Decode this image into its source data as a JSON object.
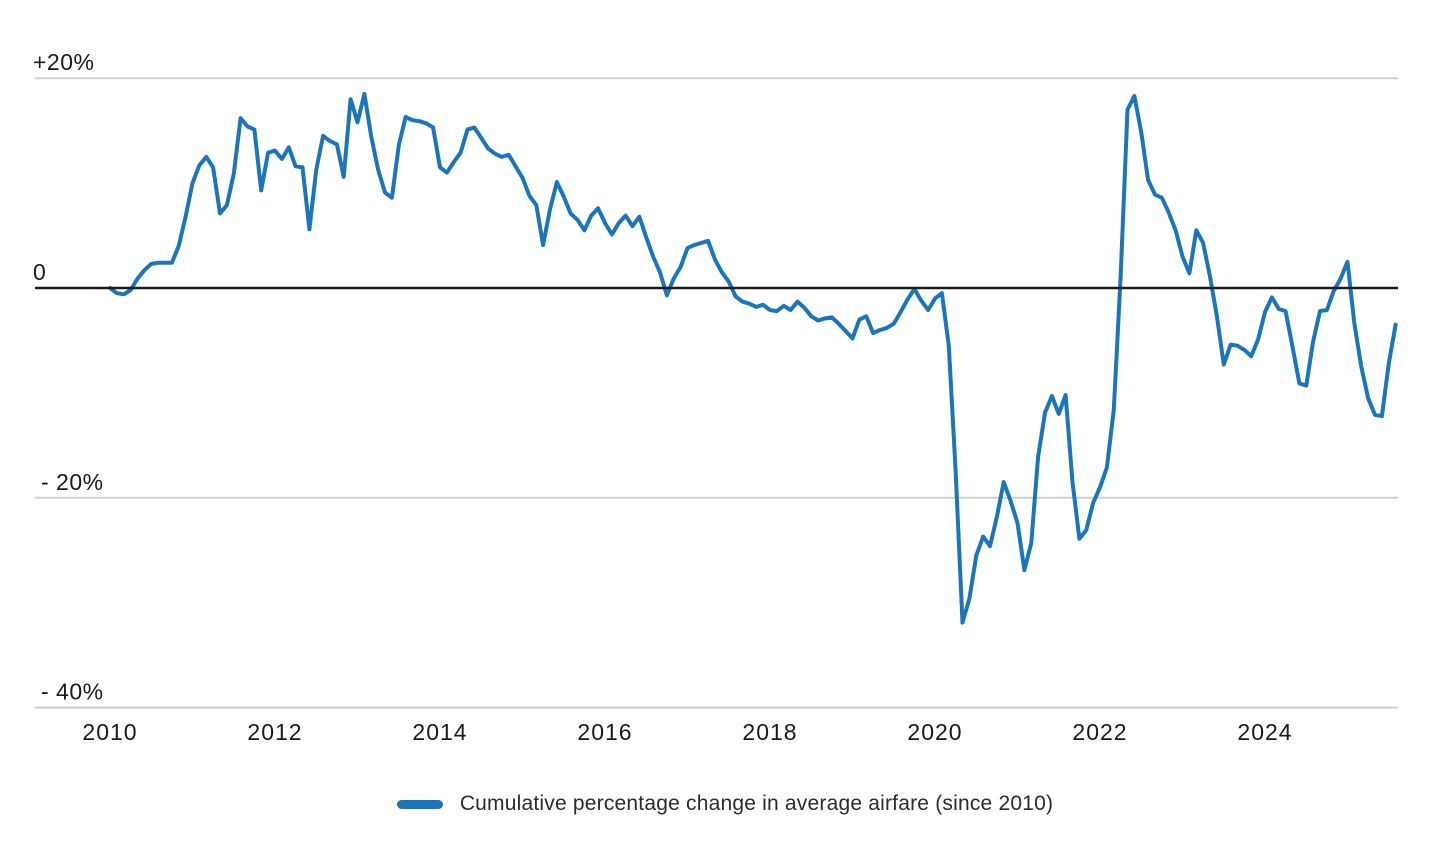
{
  "colors": {
    "line": "#1b75ba",
    "grid": "#cfcfcf",
    "zero_line": "#1a1a1a",
    "axis_text": "#1a1a1a",
    "legend_text": "#2b2b2b",
    "background": "#ffffff"
  },
  "chart_data": {
    "type": "line",
    "title": "",
    "legend": {
      "label": "Cumulative percentage change in average airfare (since 2010)",
      "position": "bottom"
    },
    "grid": "horizontal",
    "x_axis": {
      "ticks": [
        2010,
        2012,
        2014,
        2016,
        2018,
        2020,
        2022,
        2024
      ],
      "range_years": [
        2010.0,
        2025.67
      ]
    },
    "y_axis": {
      "unit": "percent",
      "ylim": [
        -40,
        20
      ],
      "ticks": [
        {
          "label": "+20%",
          "value": 20
        },
        {
          "label": "0",
          "value": 0
        },
        {
          "label": "- 20%",
          "value": -20
        },
        {
          "label": "- 40%",
          "value": -40
        }
      ],
      "zero_line_emphasized": true
    },
    "series": [
      {
        "name": "Cumulative percentage change in average airfare (since 2010)",
        "frequency": "monthly",
        "start_year": 2010,
        "start_month": 1,
        "values": [
          0.0,
          -0.5,
          -0.6,
          -0.2,
          0.9,
          1.7,
          2.3,
          2.4,
          2.4,
          2.4,
          4.0,
          6.8,
          10.0,
          11.7,
          12.5,
          11.5,
          7.1,
          7.9,
          10.9,
          16.2,
          15.4,
          15.1,
          9.3,
          12.9,
          13.1,
          12.3,
          13.4,
          11.6,
          11.5,
          5.6,
          11.3,
          14.5,
          14.0,
          13.7,
          10.6,
          18.0,
          15.8,
          18.5,
          14.4,
          11.3,
          9.1,
          8.6,
          13.6,
          16.3,
          16.0,
          15.9,
          15.7,
          15.3,
          11.5,
          11.0,
          12.0,
          12.9,
          15.1,
          15.3,
          14.3,
          13.3,
          12.8,
          12.5,
          12.7,
          11.6,
          10.5,
          8.8,
          7.9,
          4.1,
          7.5,
          10.1,
          8.7,
          7.1,
          6.5,
          5.5,
          6.9,
          7.6,
          6.2,
          5.1,
          6.2,
          6.9,
          5.9,
          6.8,
          4.8,
          3.0,
          1.5,
          -0.7,
          0.9,
          2.0,
          3.8,
          4.1,
          4.3,
          4.5,
          2.7,
          1.5,
          0.6,
          -0.8,
          -1.3,
          -1.5,
          -1.8,
          -1.6,
          -2.1,
          -2.2,
          -1.7,
          -2.1,
          -1.3,
          -1.9,
          -2.7,
          -3.1,
          -2.9,
          -2.8,
          -3.4,
          -4.1,
          -4.8,
          -3.0,
          -2.7,
          -4.3,
          -4.0,
          -3.8,
          -3.4,
          -2.3,
          -1.1,
          -0.1,
          -1.2,
          -2.1,
          -1.0,
          -0.5,
          -5.5,
          -17.4,
          -31.9,
          -29.6,
          -25.5,
          -23.7,
          -24.6,
          -21.8,
          -18.5,
          -20.3,
          -22.4,
          -26.9,
          -24.3,
          -16.1,
          -11.9,
          -10.3,
          -12.0,
          -10.2,
          -18.5,
          -23.9,
          -23.1,
          -20.5,
          -19.0,
          -17.1,
          -11.6,
          1.0,
          17.0,
          18.3,
          14.8,
          10.3,
          8.9,
          8.6,
          7.2,
          5.5,
          3.0,
          1.4,
          5.5,
          4.3,
          1.1,
          -2.7,
          -7.3,
          -5.4,
          -5.5,
          -5.9,
          -6.5,
          -4.9,
          -2.3,
          -0.9,
          -2.0,
          -2.2,
          -5.6,
          -9.1,
          -9.3,
          -5.1,
          -2.2,
          -2.1,
          -0.3,
          0.9,
          2.5,
          -3.4,
          -7.5,
          -10.5,
          -12.1,
          -12.2,
          -7.2,
          -3.5
        ]
      }
    ]
  }
}
